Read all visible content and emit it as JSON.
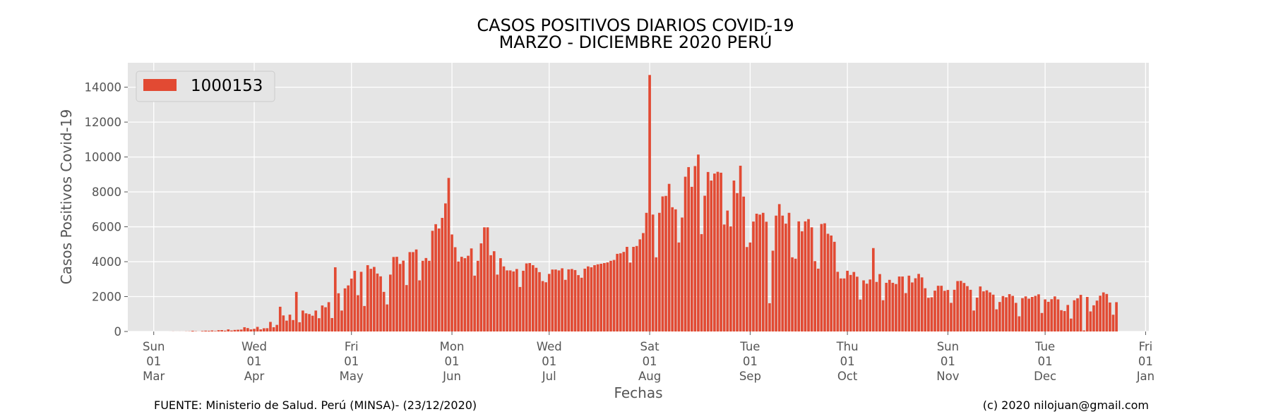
{
  "chart_data": {
    "type": "bar",
    "title": [
      "CASOS POSITIVOS DIARIOS COVID-19",
      "MARZO - DICIEMBRE 2020 PERÚ"
    ],
    "xlabel": "Fechas",
    "ylabel": "Casos Positivos Covid-19",
    "ylim": [
      0,
      15400
    ],
    "yticks": [
      0,
      2000,
      4000,
      6000,
      8000,
      10000,
      12000,
      14000
    ],
    "xlim": [
      "2020-02-22",
      "2021-01-02"
    ],
    "xticks": [
      {
        "date": "2020-03-01",
        "label": [
          "Sun",
          "01",
          "Mar"
        ]
      },
      {
        "date": "2020-04-01",
        "label": [
          "Wed",
          "01",
          "Apr"
        ]
      },
      {
        "date": "2020-05-01",
        "label": [
          "Fri",
          "01",
          "May"
        ]
      },
      {
        "date": "2020-06-01",
        "label": [
          "Mon",
          "01",
          "Jun"
        ]
      },
      {
        "date": "2020-07-01",
        "label": [
          "Wed",
          "01",
          "Jul"
        ]
      },
      {
        "date": "2020-08-01",
        "label": [
          "Sat",
          "01",
          "Aug"
        ]
      },
      {
        "date": "2020-09-01",
        "label": [
          "Tue",
          "01",
          "Sep"
        ]
      },
      {
        "date": "2020-10-01",
        "label": [
          "Thu",
          "01",
          "Oct"
        ]
      },
      {
        "date": "2020-11-01",
        "label": [
          "Sun",
          "01",
          "Nov"
        ]
      },
      {
        "date": "2020-12-01",
        "label": [
          "Tue",
          "01",
          "Dec"
        ]
      },
      {
        "date": "2021-01-01",
        "label": [
          "Fri",
          "01",
          "Jan"
        ]
      }
    ],
    "grid": true,
    "legend_position": "top-left",
    "series": [
      {
        "name": "1000153",
        "color": "#E24A33",
        "start_date": "2020-03-06",
        "values": [
          1,
          5,
          2,
          3,
          2,
          8,
          10,
          38,
          15,
          4,
          31,
          46,
          38,
          57,
          26,
          72,
          79,
          48,
          120,
          55,
          88,
          100,
          110,
          244,
          195,
          119,
          151,
          264,
          120,
          184,
          188,
          549,
          244,
          378,
          1418,
          920,
          621,
          965,
          655,
          2270,
          530,
          1200,
          1040,
          1000,
          904,
          1200,
          760,
          1490,
          1390,
          1680,
          770,
          3680,
          2190,
          1200,
          2470,
          2640,
          3030,
          3480,
          2080,
          3420,
          1460,
          3800,
          3590,
          3700,
          3320,
          3160,
          2270,
          1550,
          3260,
          4270,
          4280,
          3870,
          4060,
          2660,
          4550,
          4550,
          4700,
          2930,
          4050,
          4210,
          4050,
          5770,
          6150,
          5900,
          6510,
          7340,
          8800,
          5560,
          4830,
          4010,
          4280,
          4200,
          4340,
          4760,
          3200,
          4050,
          5050,
          5970,
          5970,
          4370,
          4600,
          3260,
          4200,
          3730,
          3500,
          3500,
          3440,
          3580,
          2550,
          3480,
          3900,
          3920,
          3800,
          3650,
          3400,
          2890,
          2820,
          3300,
          3550,
          3550,
          3500,
          3620,
          2960,
          3560,
          3580,
          3520,
          3230,
          3080,
          3600,
          3730,
          3680,
          3800,
          3850,
          3880,
          3920,
          3960,
          4050,
          4100,
          4450,
          4480,
          4560,
          4850,
          3950,
          4850,
          4900,
          5280,
          5640,
          6800,
          14700,
          6700,
          4250,
          6800,
          7740,
          7770,
          8460,
          7120,
          7000,
          5100,
          6530,
          8870,
          9420,
          8290,
          9480,
          10140,
          5580,
          7780,
          9140,
          8650,
          9050,
          9150,
          9100,
          6130,
          6930,
          6020,
          8650,
          7930,
          9500,
          7730,
          4840,
          5100,
          6300,
          6750,
          6700,
          6800,
          6290,
          1620,
          4630,
          6640,
          7300,
          6640,
          6180,
          6800,
          4250,
          4170,
          6310,
          5740,
          6310,
          6440,
          5970,
          4030,
          3600,
          6160,
          6200,
          5600,
          5500,
          5140,
          3420,
          3040,
          3040,
          3480,
          3240,
          3410,
          3140,
          1830,
          2930,
          2740,
          2980,
          4780,
          2840,
          3290,
          1790,
          2790,
          2960,
          2790,
          2720,
          3150,
          3150,
          2200,
          3200,
          2810,
          3050,
          3300,
          3100,
          2480,
          1930,
          1960,
          2340,
          2620,
          2620,
          2330,
          2380,
          1640,
          2390,
          2890,
          2900,
          2780,
          2600,
          2390,
          1200,
          1940,
          2580,
          2300,
          2360,
          2240,
          2110,
          1270,
          1690,
          2030,
          1960,
          2140,
          2040,
          1640,
          870,
          1910,
          2010,
          1880,
          1980,
          2040,
          2130,
          1060,
          1840,
          1700,
          1850,
          2010,
          1840,
          1220,
          1170,
          1520,
          740,
          1790,
          1900,
          2100,
          60,
          1980,
          1150,
          1500,
          1770,
          2050,
          2240,
          2150,
          1660,
          960,
          1680
        ]
      }
    ]
  },
  "footer": {
    "source": "FUENTE: Ministerio de Salud. Perú (MINSA)- (23/12/2020)",
    "credit": "(c) 2020 nilojuan@gmail.com"
  }
}
